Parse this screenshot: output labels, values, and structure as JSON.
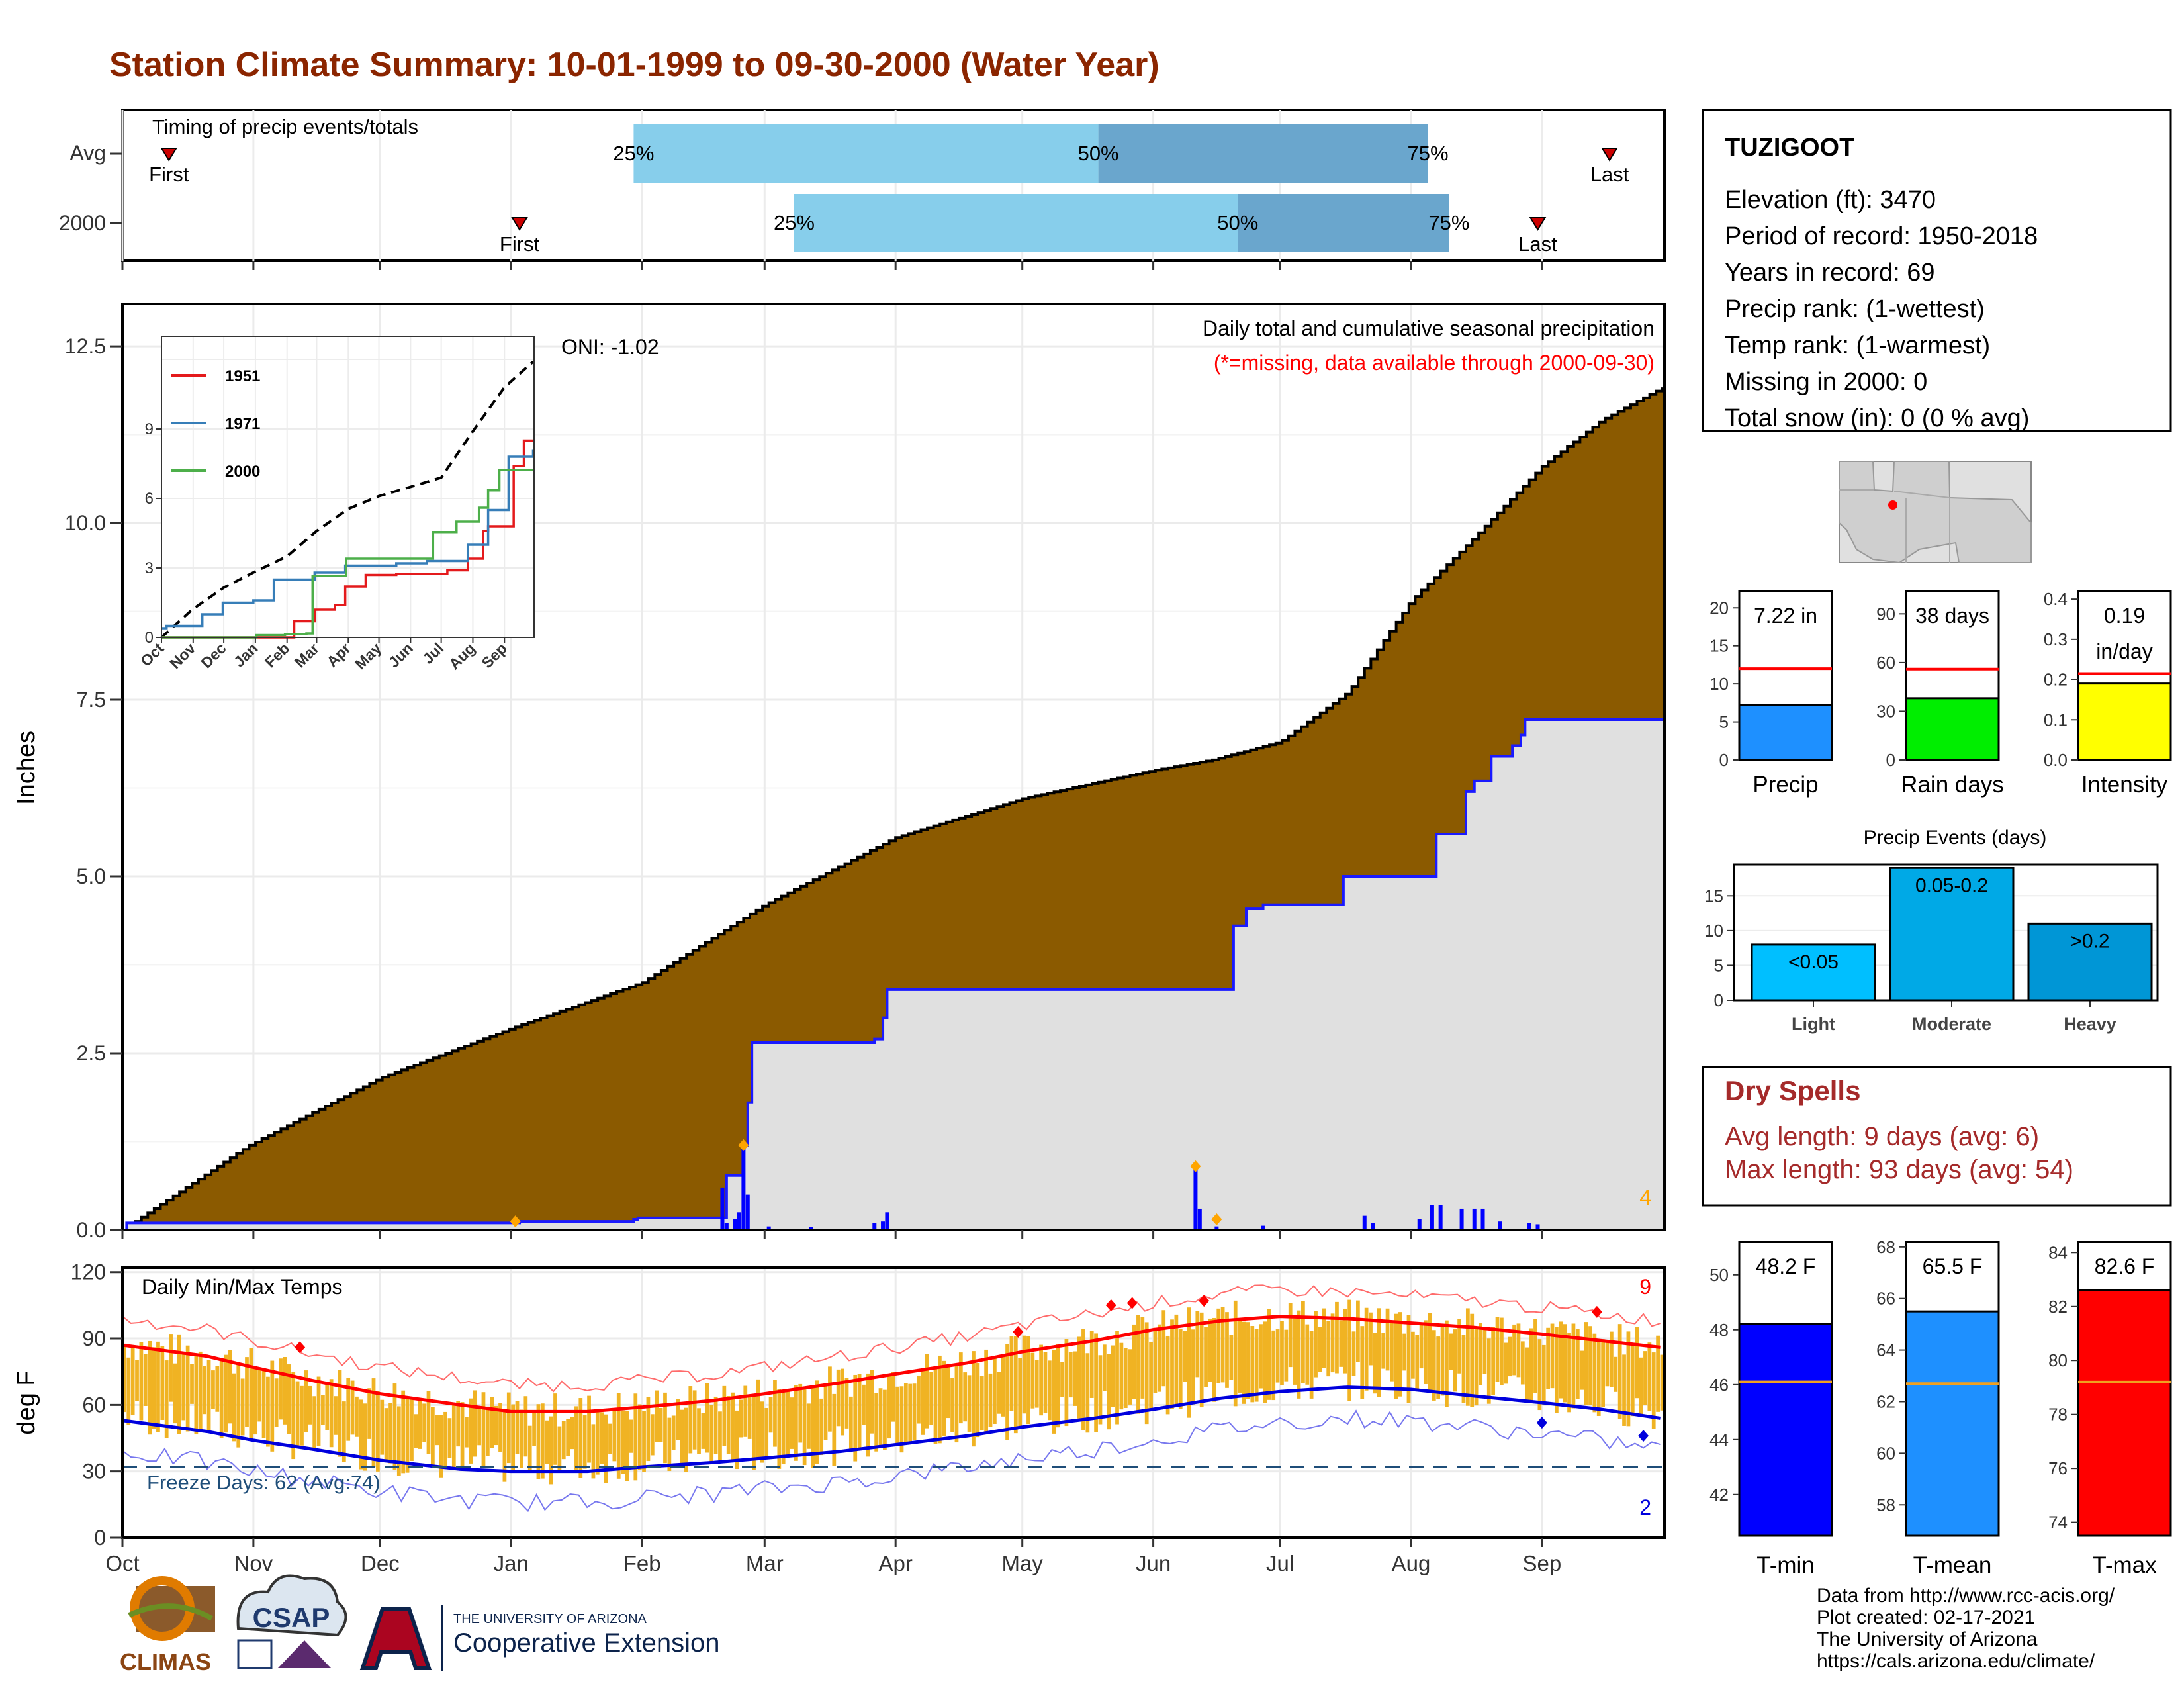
{
  "title": "Station Climate Summary: 10-01-1999 to 09-30-2000 (Water Year)",
  "colors": {
    "title": "#8b2500",
    "quartile_light": "#87ceeb",
    "quartile_dark": "#6aa6cd",
    "cumulative_fill": "#8b5a00",
    "observed_fill": "#e0e0e0",
    "observed_line": "#1a1aff",
    "temp_bars": "#f0b323",
    "tmax_avg": "#ff0000",
    "tmin_avg": "#0000dd",
    "freeze_line": "#1f4e79",
    "dry_spells": "#a52a2a"
  },
  "timing": {
    "title": "Timing of precip events/totals",
    "rows": [
      {
        "label": "Avg",
        "first": "First",
        "last": "Last",
        "q25": "25%",
        "q50": "50%",
        "q75": "75%",
        "first_day": 11,
        "q25_day": 121,
        "q50_day": 231,
        "q75_day": 309,
        "last_day": 352
      },
      {
        "label": "2000",
        "first": "First",
        "last": "Last",
        "q25": "25%",
        "q50": "50%",
        "q75": "75%",
        "first_day": 94,
        "q25_day": 159,
        "q50_day": 264,
        "q75_day": 314,
        "last_day": 335
      }
    ]
  },
  "precip_panel": {
    "ylabel": "Inches",
    "yticks": [
      "0.0",
      "2.5",
      "5.0",
      "7.5",
      "10.0",
      "12.5"
    ],
    "ytick_values": [
      0,
      2.5,
      5,
      7.5,
      10,
      12.5
    ],
    "ylim": [
      0,
      13.1
    ],
    "right_title": "Daily total and cumulative seasonal precipitation",
    "missing_note": "(*=missing, data available through 2000-09-30)",
    "oni": "ONI: -1.02",
    "count_label": "4"
  },
  "months": [
    "Oct",
    "Nov",
    "Dec",
    "Jan",
    "Feb",
    "Mar",
    "Apr",
    "May",
    "Jun",
    "Jul",
    "Aug",
    "Sep"
  ],
  "month_starts": [
    0,
    31,
    61,
    92,
    123,
    152,
    183,
    213,
    244,
    274,
    305,
    336
  ],
  "inset": {
    "yticks": [
      "0",
      "3",
      "6",
      "9"
    ],
    "months": [
      "Oct",
      "Nov",
      "Dec",
      "Jan",
      "Feb",
      "Mar",
      "Apr",
      "May",
      "Jun",
      "Jul",
      "Aug",
      "Sep"
    ],
    "legend": [
      {
        "name": "1951",
        "color": "#e41a1c"
      },
      {
        "name": "1971",
        "color": "#377eb8"
      },
      {
        "name": "2000",
        "color": "#4daf4a"
      }
    ]
  },
  "temp_panel": {
    "ylabel": "deg F",
    "title": "Daily Min/Max Temps",
    "yticks": [
      "0",
      "30",
      "60",
      "90",
      "120"
    ],
    "ytick_values": [
      0,
      30,
      60,
      90,
      120
    ],
    "ylim": [
      0,
      122
    ],
    "freeze_label": "Freeze Days: 62 (Avg:74)",
    "freeze_level": 32,
    "max_count": "9",
    "min_count": "2"
  },
  "station": {
    "name": "TUZIGOOT",
    "lines": [
      "Elevation (ft): 3470",
      "Period of record: 1950-2018",
      "Years in record: 69",
      "Precip rank:  (1-wettest)",
      "Temp rank:  (1-warmest)",
      "Missing in 2000: 0",
      "Total snow (in): 0 (0 % avg)"
    ]
  },
  "summary_bars": {
    "precip": {
      "label": "Precip",
      "value_text": "7.22 in",
      "value": 7.22,
      "avg": 12.0,
      "yticks": [
        "0",
        "5",
        "10",
        "15",
        "20"
      ],
      "tick_values": [
        0,
        5,
        10,
        15,
        20
      ],
      "max": 22.2,
      "color": "#1e90ff"
    },
    "rain_days": {
      "label": "Rain days",
      "value_text": "38 days",
      "value": 38,
      "avg": 56,
      "yticks": [
        "0",
        "30",
        "60",
        "90"
      ],
      "tick_values": [
        0,
        30,
        60,
        90
      ],
      "max": 104,
      "color": "#00ee00"
    },
    "intensity": {
      "label": "Intensity",
      "value_text_1": "0.19",
      "value_text_2": "in/day",
      "value": 0.19,
      "avg": 0.215,
      "yticks": [
        "0.0",
        "0.1",
        "0.2",
        "0.3",
        "0.4"
      ],
      "tick_values": [
        0,
        0.1,
        0.2,
        0.3,
        0.4
      ],
      "max": 0.42,
      "color": "#ffff00"
    }
  },
  "precip_events": {
    "title": "Precip Events (days)",
    "yticks": [
      "0",
      "5",
      "10",
      "15"
    ],
    "tick_values": [
      0,
      5,
      10,
      15
    ],
    "max": 19.5,
    "bars": [
      {
        "category": "Light",
        "label": "<0.05",
        "value": 8,
        "color": "#00bfff"
      },
      {
        "category": "Moderate",
        "label": "0.05-0.2",
        "value": 19,
        "color": "#00a9e6"
      },
      {
        "category": "Heavy",
        "label": ">0.2",
        "value": 11,
        "color": "#0096d6"
      }
    ]
  },
  "dry_spells": {
    "title": "Dry Spells",
    "avg_length": "Avg length: 9 days (avg: 6)",
    "max_length": "Max length: 93 days (avg: 54)"
  },
  "temp_bars": {
    "tmin": {
      "label": "T-min",
      "value_text": "48.2 F",
      "value": 48.2,
      "avg": 46.1,
      "yticks": [
        "42",
        "44",
        "46",
        "48",
        "50"
      ],
      "tick_values": [
        42,
        44,
        46,
        48,
        50
      ],
      "min": 40.5,
      "max": 51.2,
      "color": "#0000ff"
    },
    "tmean": {
      "label": "T-mean",
      "value_text": "65.5 F",
      "value": 65.5,
      "avg": 62.7,
      "yticks": [
        "58",
        "60",
        "62",
        "64",
        "66",
        "68"
      ],
      "tick_values": [
        58,
        60,
        62,
        64,
        66,
        68
      ],
      "min": 56.8,
      "max": 68.2,
      "color": "#1e90ff"
    },
    "tmax": {
      "label": "T-max",
      "value_text": "82.6 F",
      "value": 82.6,
      "avg": 79.2,
      "yticks": [
        "74",
        "76",
        "78",
        "80",
        "82",
        "84"
      ],
      "tick_values": [
        74,
        76,
        78,
        80,
        82,
        84
      ],
      "min": 73.5,
      "max": 84.4,
      "color": "#ff0000"
    }
  },
  "footer": {
    "climas": "CLIMAS",
    "csap": "CSAP",
    "ua_small": "THE UNIVERSITY OF ARIZONA",
    "ua_big": "Cooperative Extension",
    "credits": [
      "Data from http://www.rcc-acis.org/",
      "Plot created: 02-17-2021",
      "The University of Arizona",
      "https://cals.arizona.edu/climate/"
    ]
  },
  "chart_data": {
    "type": "area",
    "title": "Daily total and cumulative seasonal precipitation",
    "ylabel": "Inches",
    "ylim": [
      0,
      13.1
    ],
    "avg_cumulative": {
      "x": [
        0,
        30,
        61,
        92,
        123,
        152,
        183,
        213,
        244,
        258,
        274,
        290,
        305,
        320,
        336,
        350,
        364
      ],
      "y": [
        0,
        1.2,
        2.15,
        2.85,
        3.5,
        4.6,
        5.55,
        6.1,
        6.5,
        6.65,
        6.9,
        7.6,
        8.9,
        9.8,
        10.8,
        11.45,
        11.9
      ]
    },
    "observed_2000_cumulative": {
      "x": [
        0,
        1,
        93,
        94,
        121,
        122,
        142,
        143,
        147,
        148,
        149,
        178,
        180,
        181,
        234,
        263,
        266,
        270,
        289,
        311,
        318,
        320,
        324,
        329,
        331,
        332,
        364
      ],
      "y": [
        0,
        0.1,
        0.1,
        0.12,
        0.15,
        0.17,
        0.17,
        0.77,
        1.2,
        1.8,
        2.65,
        2.7,
        3.0,
        3.4,
        3.4,
        4.3,
        4.55,
        4.6,
        5.0,
        5.6,
        6.2,
        6.35,
        6.7,
        6.85,
        7.0,
        7.22,
        7.22
      ],
      "total": 7.22
    },
    "daily_precip_2000": [
      {
        "day": 142,
        "inches": 0.6
      },
      {
        "day": 143,
        "inches": 0.1
      },
      {
        "day": 145,
        "inches": 0.15
      },
      {
        "day": 146,
        "inches": 0.25
      },
      {
        "day": 147,
        "inches": 1.2
      },
      {
        "day": 148,
        "inches": 0.5
      },
      {
        "day": 153,
        "inches": 0.05
      },
      {
        "day": 163,
        "inches": 0.04
      },
      {
        "day": 178,
        "inches": 0.1
      },
      {
        "day": 180,
        "inches": 0.12
      },
      {
        "day": 181,
        "inches": 0.25
      },
      {
        "day": 254,
        "inches": 0.85
      },
      {
        "day": 255,
        "inches": 0.3
      },
      {
        "day": 259,
        "inches": 0.05
      },
      {
        "day": 270,
        "inches": 0.06
      },
      {
        "day": 294,
        "inches": 0.2
      },
      {
        "day": 296,
        "inches": 0.1
      },
      {
        "day": 307,
        "inches": 0.15
      },
      {
        "day": 310,
        "inches": 0.35
      },
      {
        "day": 312,
        "inches": 0.35
      },
      {
        "day": 317,
        "inches": 0.3
      },
      {
        "day": 320,
        "inches": 0.3
      },
      {
        "day": 322,
        "inches": 0.3
      },
      {
        "day": 326,
        "inches": 0.12
      },
      {
        "day": 333,
        "inches": 0.1
      },
      {
        "day": 335,
        "inches": 0.08
      }
    ],
    "record_markers": [
      {
        "day": 93,
        "inches": 0.12
      },
      {
        "day": 147,
        "inches": 1.2
      },
      {
        "day": 254,
        "inches": 0.9
      },
      {
        "day": 259,
        "inches": 0.15
      }
    ],
    "inset_cumulative": {
      "ylim": [
        0,
        13
      ],
      "avg": {
        "x": [
          0,
          30,
          61,
          92,
          123,
          152,
          183,
          213,
          244,
          274,
          305,
          336,
          364
        ],
        "y": [
          0,
          1.2,
          2.15,
          2.85,
          3.5,
          4.6,
          5.55,
          6.1,
          6.5,
          6.9,
          8.9,
          10.8,
          11.9
        ]
      },
      "series": [
        {
          "name": "1951",
          "x": [
            0,
            120,
            130,
            150,
            170,
            180,
            200,
            230,
            280,
            300,
            315,
            320,
            345,
            355,
            364
          ],
          "y": [
            0,
            0,
            0.7,
            1.2,
            1.4,
            2.2,
            2.7,
            2.75,
            2.9,
            3.4,
            4.6,
            4.8,
            7.4,
            8.5,
            8.5
          ]
        },
        {
          "name": "1971",
          "x": [
            0,
            5,
            40,
            60,
            90,
            110,
            150,
            180,
            230,
            260,
            300,
            320,
            340,
            364
          ],
          "y": [
            0.4,
            0.5,
            1.0,
            1.5,
            1.6,
            2.5,
            2.8,
            3.1,
            3.2,
            3.3,
            4.0,
            5.5,
            7.8,
            8.1
          ]
        },
        {
          "name": "2000",
          "x": [
            0,
            93,
            121,
            142,
            148,
            181,
            234,
            266,
            289,
            311,
            320,
            331,
            364
          ],
          "y": [
            0,
            0.1,
            0.15,
            0.17,
            2.65,
            3.4,
            3.4,
            4.55,
            5.0,
            5.6,
            6.35,
            7.22,
            7.22
          ]
        }
      ]
    },
    "temperature": {
      "ylabel": "deg F",
      "ylim": [
        0,
        122
      ],
      "avg_tmax": {
        "x": [
          0,
          20,
          31,
          45,
          61,
          80,
          92,
          110,
          123,
          140,
          152,
          170,
          183,
          200,
          213,
          230,
          244,
          260,
          274,
          290,
          305,
          320,
          336,
          350,
          364
        ],
        "y": [
          87,
          82,
          77,
          71,
          65,
          60,
          57,
          57,
          59,
          62,
          65,
          70,
          74,
          79,
          84,
          89,
          94,
          98,
          100,
          99,
          97,
          95,
          92,
          89,
          86
        ]
      },
      "avg_tmin": {
        "x": [
          0,
          20,
          31,
          45,
          61,
          80,
          92,
          110,
          123,
          140,
          152,
          170,
          183,
          200,
          213,
          230,
          244,
          260,
          274,
          290,
          305,
          320,
          336,
          350,
          364
        ],
        "y": [
          53,
          48,
          44,
          40,
          35,
          31,
          30,
          30,
          32,
          34,
          36,
          39,
          42,
          46,
          50,
          54,
          58,
          63,
          66,
          68,
          67,
          64,
          61,
          58,
          54
        ]
      },
      "record_high_markers": [
        {
          "day": 42,
          "temp": 86
        },
        {
          "day": 212,
          "temp": 93
        },
        {
          "day": 234,
          "temp": 105
        },
        {
          "day": 239,
          "temp": 106
        },
        {
          "day": 256,
          "temp": 107
        },
        {
          "day": 349,
          "temp": 102
        }
      ],
      "record_low_markers": [
        {
          "day": 336,
          "temp": 52
        },
        {
          "day": 360,
          "temp": 46
        }
      ]
    }
  }
}
